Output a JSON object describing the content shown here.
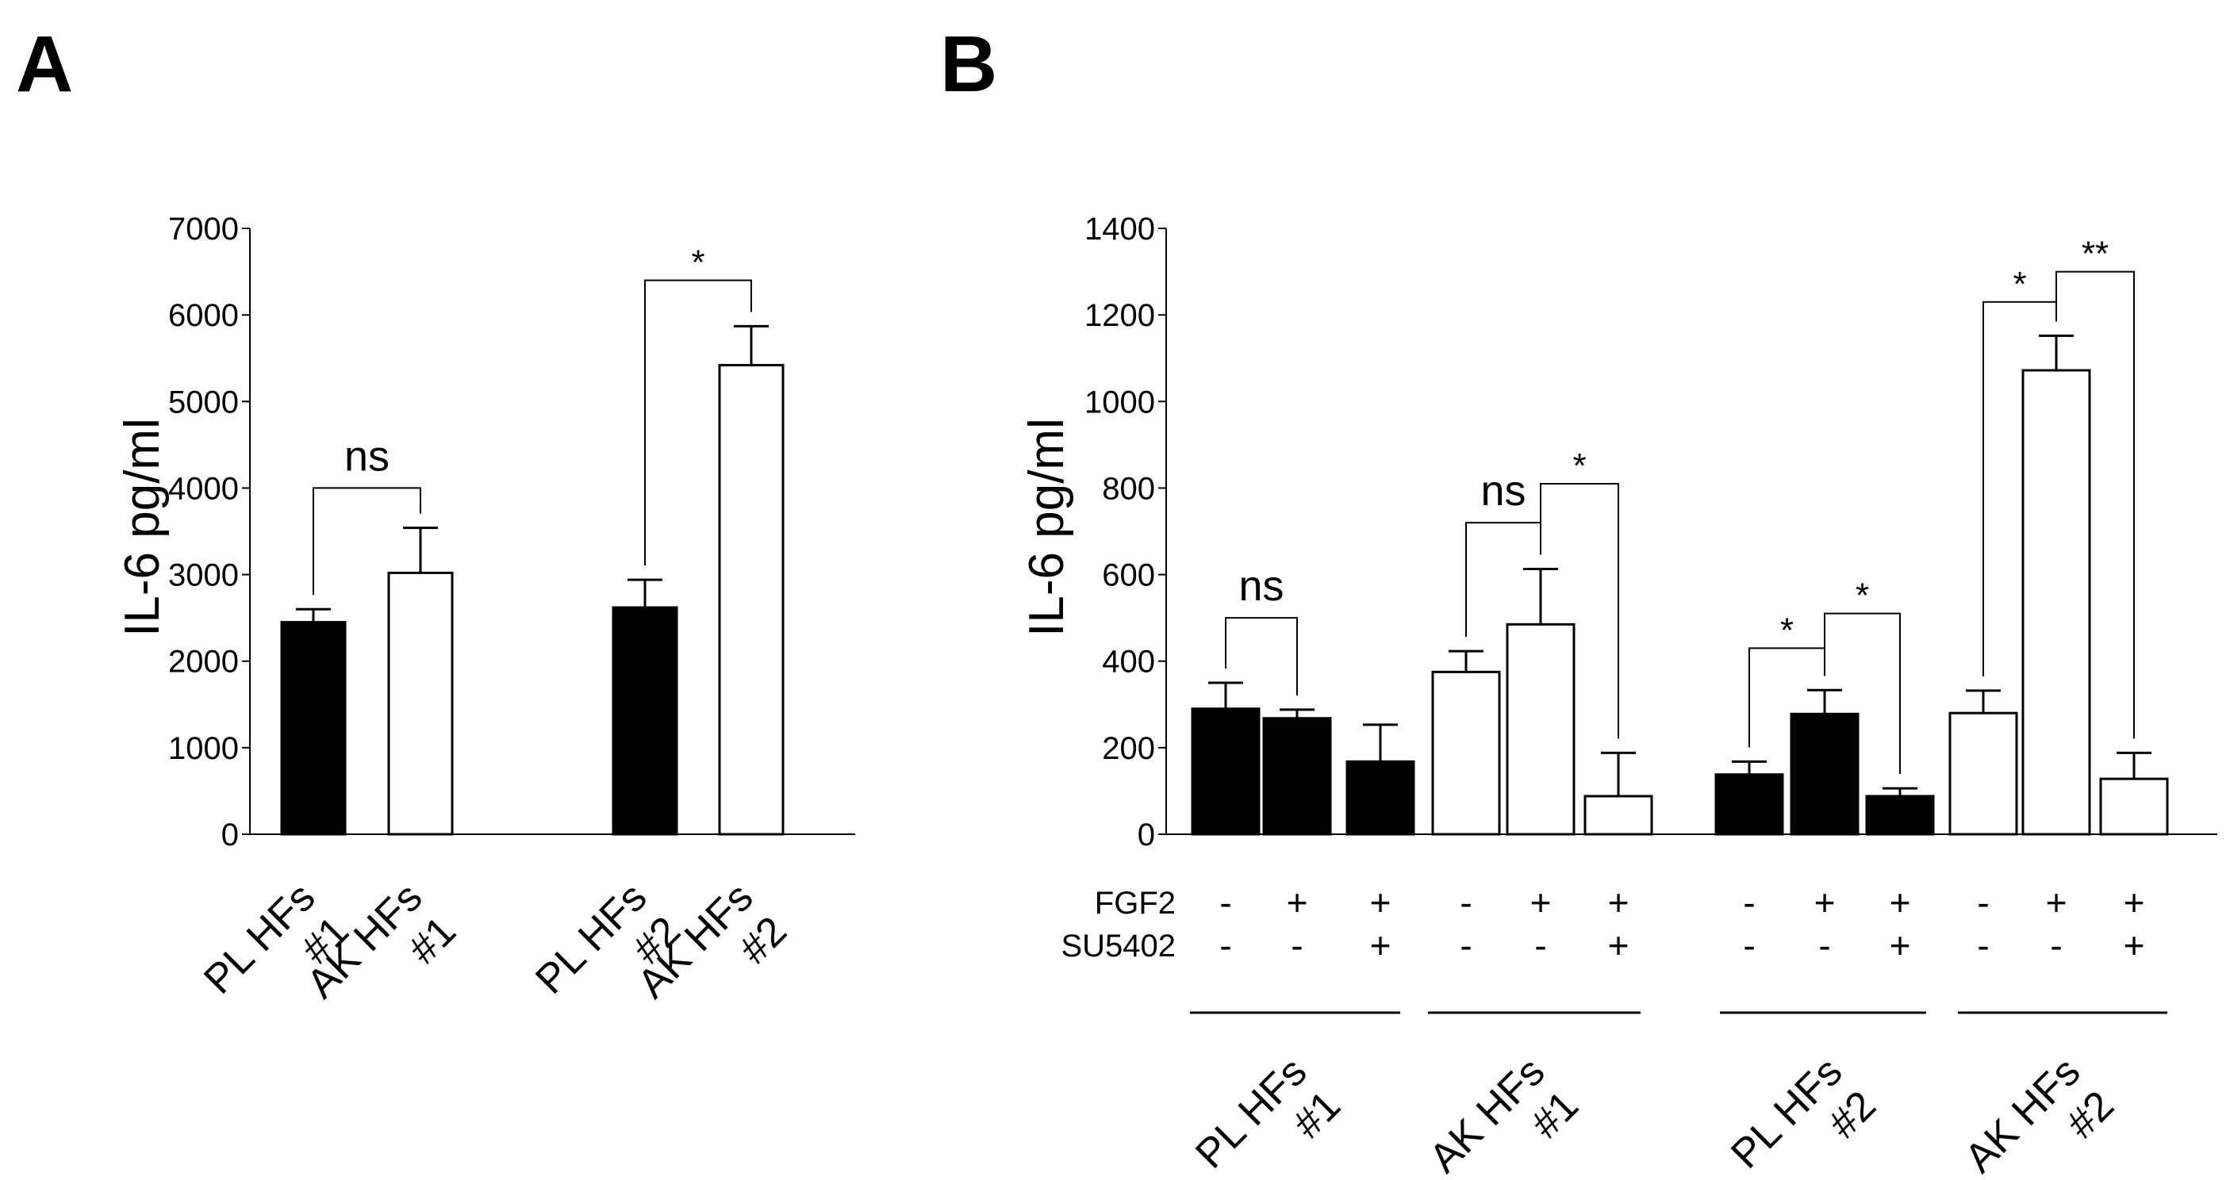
{
  "chart_data": [
    {
      "panel": "A",
      "type": "bar",
      "ylabel": "IL-6 pg/ml",
      "ylim": [
        0,
        7000
      ],
      "yticks": [
        0,
        1000,
        2000,
        3000,
        4000,
        5000,
        6000,
        7000
      ],
      "bars": [
        {
          "group": 0,
          "value": 2450,
          "error": 150,
          "fill": "black"
        },
        {
          "group": 0,
          "value": 3020,
          "error": 520,
          "fill": "white"
        },
        {
          "group": 1,
          "value": 2620,
          "error": 320,
          "fill": "black"
        },
        {
          "group": 1,
          "value": 5420,
          "error": 450,
          "fill": "white"
        }
      ],
      "xlabels": [
        {
          "bar": 0,
          "line1": "PL HFs",
          "line2": "#1"
        },
        {
          "bar": 1,
          "line1": "AK HFs",
          "line2": "#1"
        },
        {
          "bar": 2,
          "line1": "PL HFs",
          "line2": "#2"
        },
        {
          "bar": 3,
          "line1": "AK HFs",
          "line2": "#2"
        }
      ],
      "comparisons": [
        {
          "from": 0,
          "to": 1,
          "label": "ns",
          "level": 4000
        },
        {
          "from": 2,
          "to": 3,
          "label": "*",
          "level": 6400
        }
      ]
    },
    {
      "panel": "B",
      "type": "bar",
      "ylabel": "IL-6 pg/ml",
      "ylim": [
        0,
        1400
      ],
      "yticks": [
        0,
        200,
        400,
        600,
        800,
        1000,
        1200,
        1400
      ],
      "bars": [
        {
          "group": 0,
          "value": 290,
          "error": 60,
          "fill": "black"
        },
        {
          "group": 0,
          "value": 268,
          "error": 20,
          "fill": "black"
        },
        {
          "group": 0,
          "value": 168,
          "error": 85,
          "fill": "black"
        },
        {
          "group": 1,
          "value": 375,
          "error": 48,
          "fill": "white"
        },
        {
          "group": 1,
          "value": 485,
          "error": 128,
          "fill": "white"
        },
        {
          "group": 1,
          "value": 88,
          "error": 100,
          "fill": "white"
        },
        {
          "group": 2,
          "value": 138,
          "error": 30,
          "fill": "black"
        },
        {
          "group": 2,
          "value": 278,
          "error": 55,
          "fill": "black"
        },
        {
          "group": 2,
          "value": 88,
          "error": 18,
          "fill": "black"
        },
        {
          "group": 3,
          "value": 280,
          "error": 52,
          "fill": "white"
        },
        {
          "group": 3,
          "value": 1072,
          "error": 80,
          "fill": "white"
        },
        {
          "group": 3,
          "value": 128,
          "error": 60,
          "fill": "white"
        }
      ],
      "treatments": [
        {
          "label": "FGF2",
          "values": [
            "-",
            "+",
            "+",
            "-",
            "+",
            "+",
            "-",
            "+",
            "+",
            "-",
            "+",
            "+"
          ]
        },
        {
          "label": "SU5402",
          "values": [
            "-",
            "-",
            "+",
            "-",
            "-",
            "+",
            "-",
            "-",
            "+",
            "-",
            "-",
            "+"
          ]
        }
      ],
      "groups": [
        {
          "line1": "PL HFs",
          "line2": "#1"
        },
        {
          "line1": "AK HFs",
          "line2": "#1"
        },
        {
          "line1": "PL HFs",
          "line2": "#2"
        },
        {
          "line1": "AK HFs",
          "line2": "#2"
        }
      ],
      "comparisons": [
        {
          "from": 0,
          "to": 1,
          "label": "ns",
          "level": 500
        },
        {
          "from": 3,
          "to": 4,
          "label": "ns",
          "level": 720
        },
        {
          "from": 4,
          "to": 5,
          "label": "*",
          "level": 810
        },
        {
          "from": 6,
          "to": 7,
          "label": "*",
          "level": 430
        },
        {
          "from": 7,
          "to": 8,
          "label": "*",
          "level": 510
        },
        {
          "from": 9,
          "to": 10,
          "label": "*",
          "level": 1230
        },
        {
          "from": 10,
          "to": 11,
          "label": "**",
          "level": 1300
        }
      ]
    }
  ]
}
